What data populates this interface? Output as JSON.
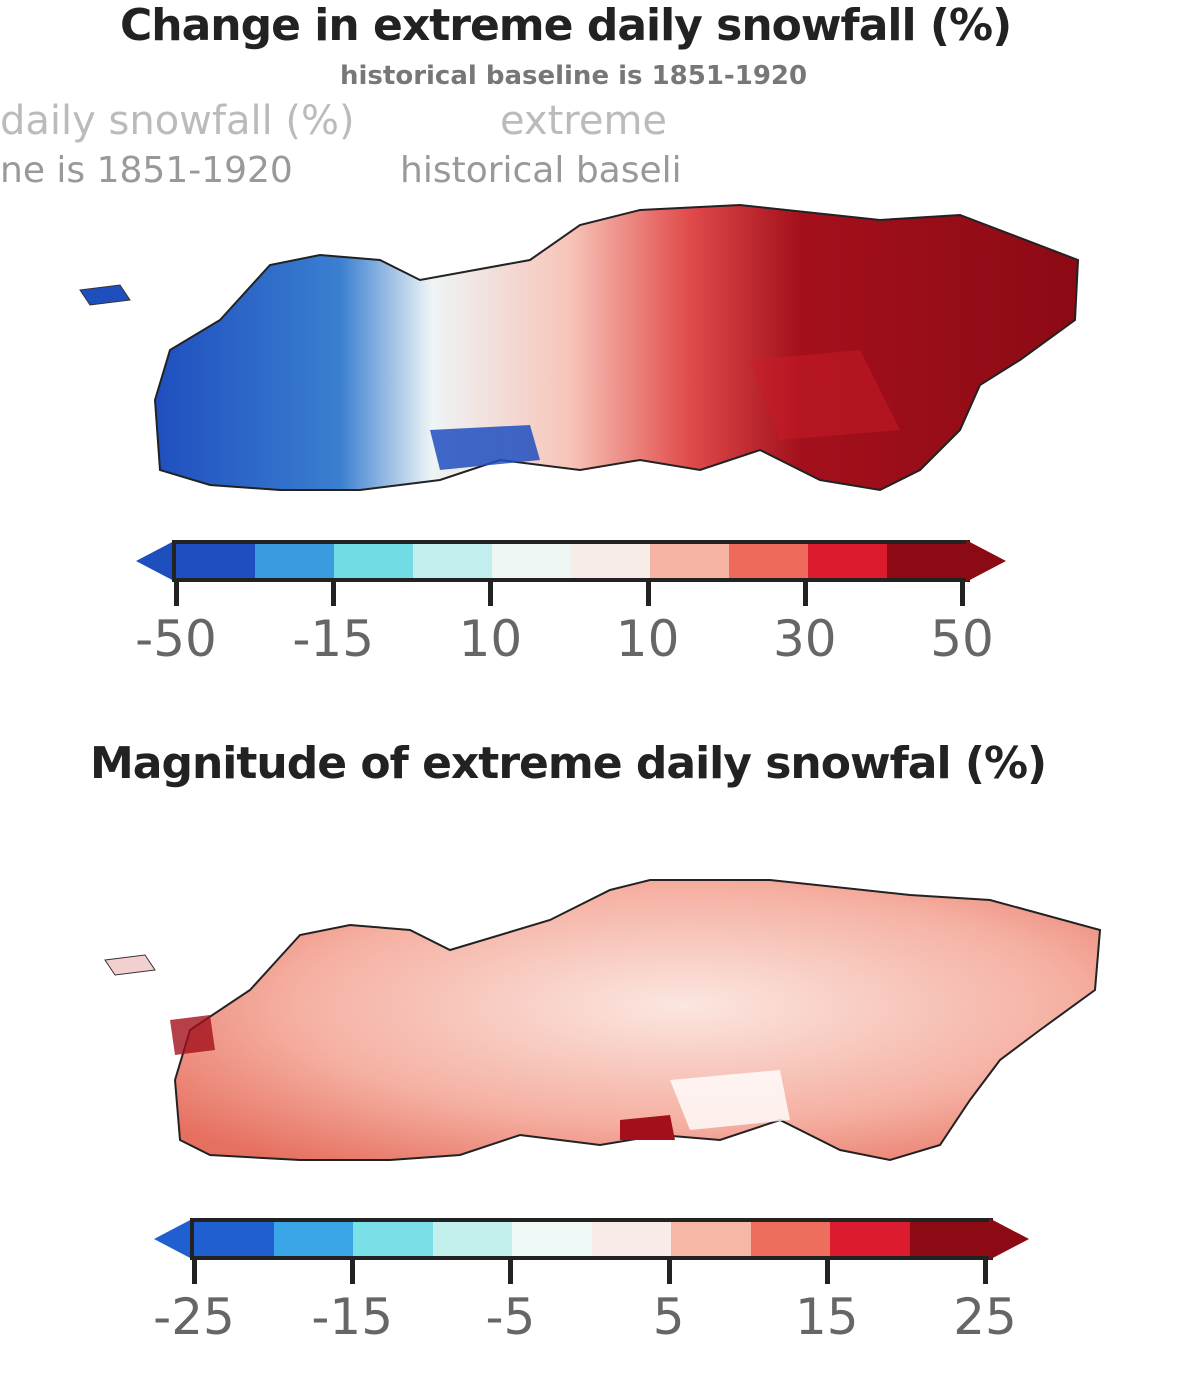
{
  "map1": {
    "title": "Change in extreme daily snowfall (%)",
    "subtitle": "historical baseline is 1851-1920",
    "ghost_texts": [
      "daily snowfall (%)",
      "extreme",
      "ne is 1851-1920",
      "historical baseli"
    ],
    "colorbar": {
      "colors": [
        "#1f4fbf",
        "#3a9be0",
        "#73dbe3",
        "#c2efee",
        "#eff7f5",
        "#f8ece8",
        "#f7b3a3",
        "#ef6a5b",
        "#dc1c2e",
        "#8c0a14"
      ],
      "tick_labels": [
        "-50",
        "-15",
        "10",
        "10",
        "30",
        "50"
      ]
    }
  },
  "map2": {
    "title": "Magnitude of extreme daily snowfal (%)",
    "colorbar": {
      "colors": [
        "#1f5fcf",
        "#3aa6e8",
        "#7adfe6",
        "#c3efec",
        "#eef8f6",
        "#f9ece8",
        "#f6b7a6",
        "#ee6e5e",
        "#dc1c2e",
        "#8c0a14"
      ],
      "tick_labels": [
        "-25",
        "-15",
        "-5",
        "5",
        "15",
        "25"
      ]
    }
  }
}
